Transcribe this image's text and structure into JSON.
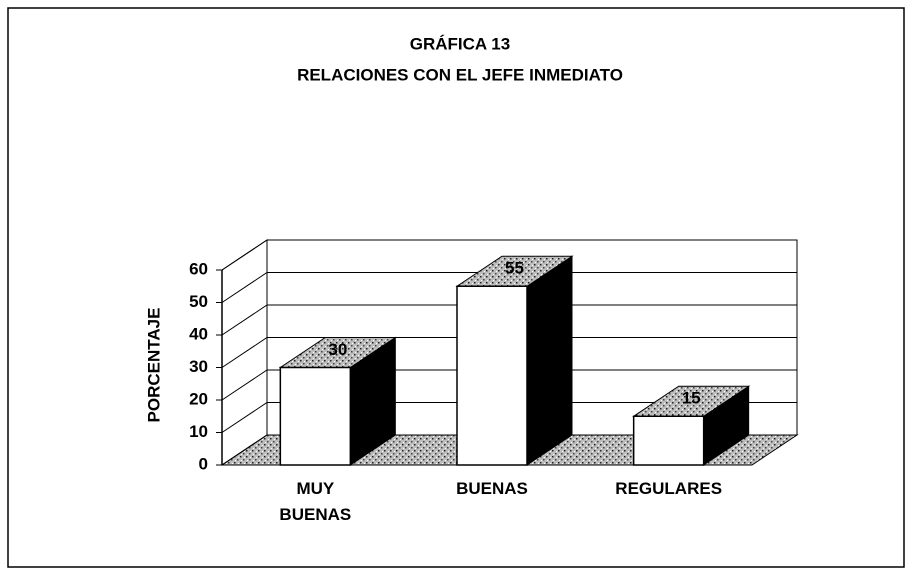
{
  "chart_data": {
    "type": "bar3d",
    "title": "GRÁFICA 13",
    "subtitle": "RELACIONES CON EL JEFE INMEDIATO",
    "y_label": "PORCENTAJE",
    "categories": [
      "MUY BUENAS",
      "BUENAS",
      "REGULARES"
    ],
    "values": [
      30,
      55,
      15
    ],
    "color": "#ffffff",
    "side_color": "#000000",
    "ylim": [
      0,
      60
    ],
    "yticks": [
      0,
      10,
      20,
      30,
      40,
      50,
      60
    ],
    "grid": true
  }
}
